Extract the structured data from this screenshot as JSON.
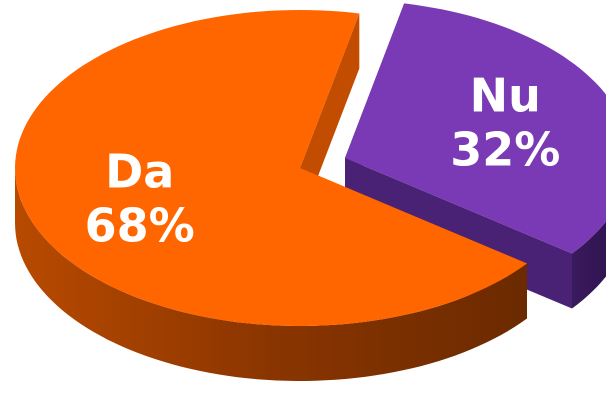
{
  "chart_data": {
    "type": "pie",
    "categories": [
      "Da",
      "Nu"
    ],
    "values": [
      68,
      32
    ],
    "value_labels": [
      "68%",
      "32%"
    ],
    "colors": [
      "#ff6600",
      "#7b3ab5"
    ],
    "exploded": "Nu"
  }
}
